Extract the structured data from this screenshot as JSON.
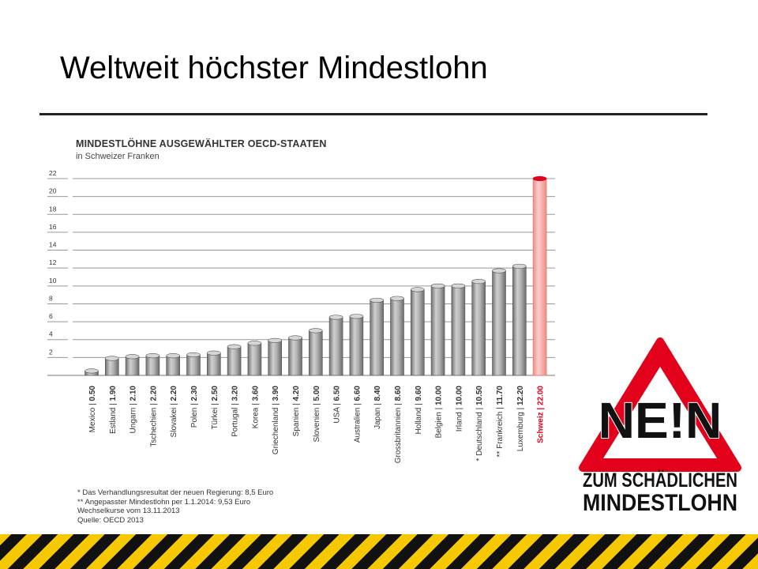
{
  "slide": {
    "title": "Weltweit höchster Mindestlohn"
  },
  "chart_data": {
    "type": "bar",
    "title": "MINDESTLÖHNE AUSGEWÄHLTER OECD-STAATEN",
    "subtitle": "in Schweizer Franken",
    "xlabel": "",
    "ylabel": "",
    "ylim": [
      0,
      22
    ],
    "yticks": [
      2,
      4,
      6,
      8,
      10,
      12,
      14,
      16,
      18,
      20,
      22
    ],
    "grid": true,
    "categories": [
      "Mexico",
      "Estland",
      "Ungarn",
      "Tschechien",
      "Slovakei",
      "Polen",
      "Türkei",
      "Portugal",
      "Korea",
      "Griechenland",
      "Spanien",
      "Slovenien",
      "USA",
      "Australien",
      "Japan",
      "Grossbritannien",
      "Holland",
      "Belgien",
      "Irland",
      "* Deutschland",
      "** Frankreich",
      "Luxemburg",
      "Schweiz"
    ],
    "values": [
      0.5,
      1.9,
      2.1,
      2.2,
      2.2,
      2.3,
      2.5,
      3.2,
      3.6,
      3.9,
      4.2,
      5.0,
      6.5,
      6.6,
      8.4,
      8.6,
      9.6,
      10.0,
      10.0,
      10.5,
      11.7,
      12.2,
      22.0
    ],
    "value_labels": [
      "0.50",
      "1.90",
      "2.10",
      "2.20",
      "2.20",
      "2.30",
      "2.50",
      "3.20",
      "3.60",
      "3.90",
      "4.20",
      "5.00",
      "6.50",
      "6.60",
      "8.40",
      "8.60",
      "9.60",
      "10.00",
      "10.00",
      "10.50",
      "11.70",
      "12.20",
      "22.00"
    ],
    "highlight_index": 22,
    "colors": {
      "bar": "#a8a8a8",
      "bar_edge": "#555555",
      "highlight": "#f4a6a0",
      "highlight_top": "#e2001a",
      "grid": "#999999",
      "label_highlight": "#e2001a"
    }
  },
  "footnotes": [
    "*  Das Verhandlungsresultat der neuen Regierung: 8,5 Euro",
    "** Angepasster Mindestlohn per 1.1.2014: 9,53 Euro",
    "Wechselkurse vom 13.11.2013",
    "Quelle: OECD 2013"
  ],
  "logo": {
    "word": "NE!N",
    "line1": "ZUM SCHÄDLICHEN",
    "line2": "MINDESTLOHN",
    "colors": {
      "red": "#e2001a",
      "black": "#111111"
    }
  }
}
